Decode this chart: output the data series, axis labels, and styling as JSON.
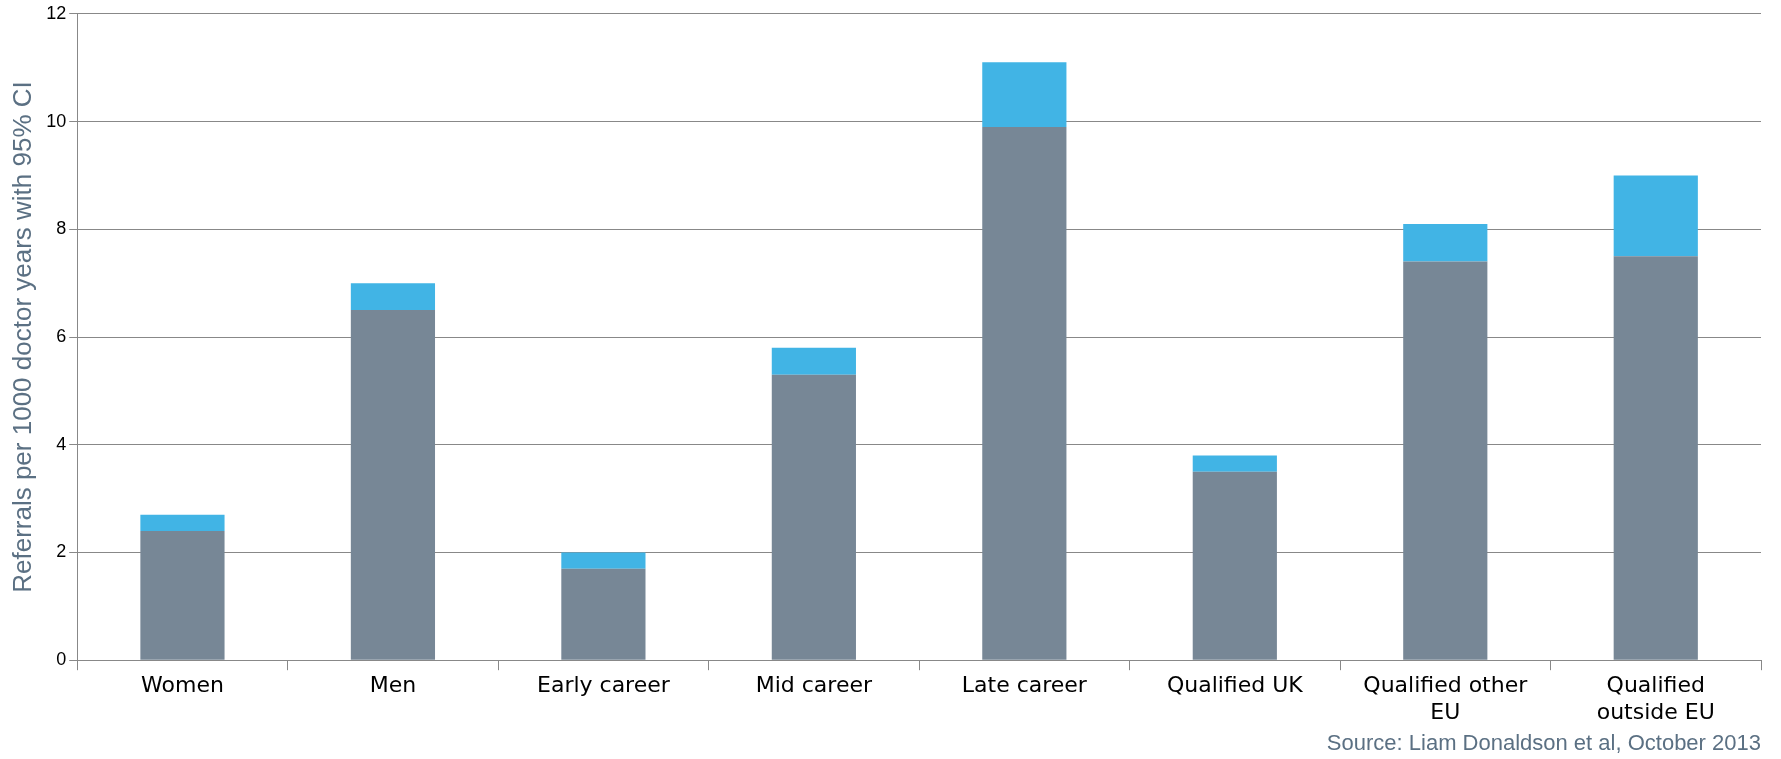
{
  "chart_data": {
    "type": "bar",
    "stacked": true,
    "ylabel": "Referrals per 1000 doctor years with 95% CI",
    "categories": [
      "Women",
      "Men",
      "Early career",
      "Mid career",
      "Late career",
      "Qualified UK",
      "Qualified other EU",
      "Qualified outside EU"
    ],
    "series": [
      {
        "color": "#778796",
        "values": [
          2.4,
          6.5,
          1.7,
          5.3,
          9.9,
          3.5,
          7.4,
          7.5
        ]
      },
      {
        "color": "#41b4e5",
        "values": [
          0.3,
          0.5,
          0.3,
          0.5,
          1.2,
          0.3,
          0.7,
          1.5
        ]
      }
    ],
    "ylim": [
      0,
      12
    ],
    "yticks": [
      0,
      2,
      4,
      6,
      8,
      10,
      12
    ],
    "grid": "y",
    "legend": false,
    "annotations": [
      "Source: Liam Donaldson et al, October 2013"
    ]
  }
}
